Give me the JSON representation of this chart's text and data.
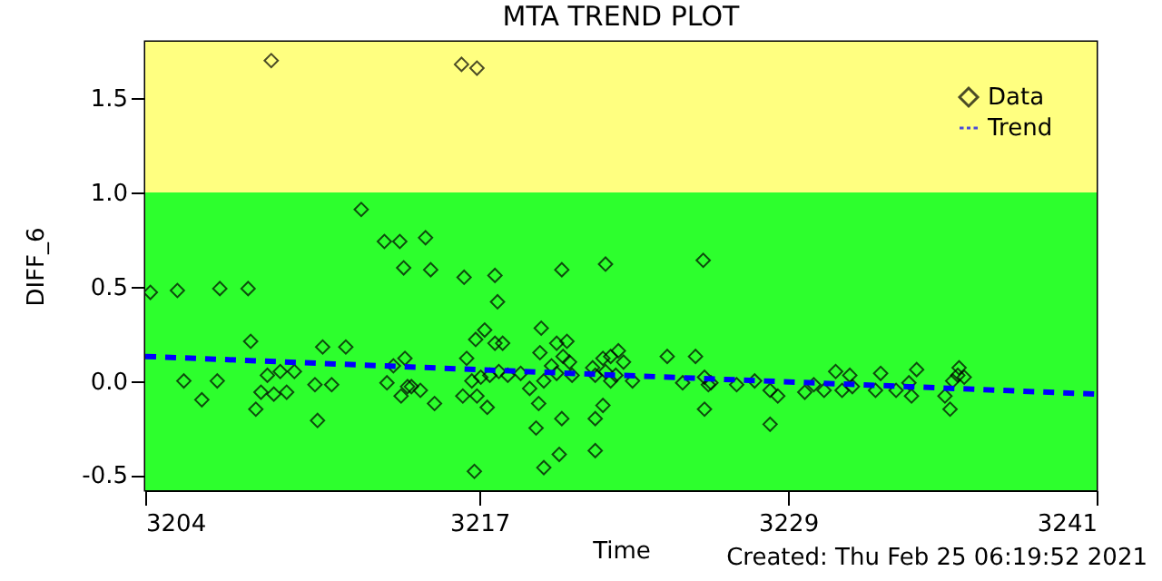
{
  "chart_data": {
    "type": "scatter",
    "title": "MTA TREND PLOT",
    "xlabel": "Time",
    "ylabel": "DIFF_6",
    "annotations": [
      "Created: Thu Feb 25 06:19:52 2021"
    ],
    "xlim": [
      3204,
      3241
    ],
    "ylim": [
      -0.58,
      1.8
    ],
    "xticks": [
      3204,
      3217,
      3229,
      3241
    ],
    "yticks": [
      -0.5,
      {
        "value": 0,
        "label": "0.0"
      },
      0.5,
      {
        "value": 1,
        "label": "1.0"
      },
      1.5
    ],
    "grid": false,
    "legend": "top right",
    "bands": [
      {
        "axis": "y",
        "from": 1.0,
        "to": 1.8,
        "color": "#ffff80"
      },
      {
        "axis": "y",
        "from": -0.58,
        "to": 1.0,
        "color": "#2dff2d"
      }
    ],
    "series": [
      {
        "name": "Data",
        "type": "scatter",
        "color": "#000000",
        "marker": "diamond",
        "x": [
          3204.2,
          3205.25,
          3205.5,
          3206.2,
          3206.9,
          3206.8,
          3208.0,
          3208.1,
          3208.3,
          3208.5,
          3208.75,
          3209.0,
          3209.25,
          3209.5,
          3209.8,
          3210.6,
          3210.7,
          3210.9,
          3211.25,
          3211.8,
          3212.4,
          3213.3,
          3213.9,
          3214.05,
          3214.9,
          3215.1,
          3213.4,
          3213.65,
          3214.1,
          3213.95,
          3214.2,
          3214.35,
          3214.7,
          3215.25,
          3208.9,
          3216.3,
          3216.9,
          3216.4,
          3217.6,
          3217.7,
          3220.2,
          3221.9,
          3225.7,
          3216.8,
          3219.5,
          3220.1,
          3221.5,
          3219.2,
          3220.2,
          3221.5,
          3221.8,
          3216.35,
          3216.85,
          3217.2,
          3217.6,
          3217.9,
          3216.5,
          3216.7,
          3217.05,
          3217.4,
          3217.75,
          3217.3,
          3216.9,
          3218.1,
          3218.6,
          3219.4,
          3220.0,
          3220.4,
          3219.35,
          3218.95,
          3219.3,
          3219.5,
          3220.0,
          3220.6,
          3220.25,
          3220.5,
          3219.8,
          3221.4,
          3221.8,
          3222.1,
          3222.4,
          3221.9,
          3221.5,
          3222.3,
          3222.6,
          3222.1,
          3222.95,
          3224.3,
          3225.4,
          3224.9,
          3225.75,
          3225.75,
          3225.9,
          3226.0,
          3227.0,
          3227.7,
          3228.3,
          3228.3,
          3228.6,
          3229.65,
          3230.0,
          3230.4,
          3230.85,
          3231.1,
          3231.4,
          3231.5,
          3232.4,
          3232.6,
          3233.2,
          3233.7,
          3233.8,
          3234.0,
          3235.1,
          3235.3,
          3235.4,
          3235.65,
          3235.85,
          3235.6
        ],
        "values": [
          0.47,
          0.48,
          0.0,
          -0.1,
          0.49,
          0.0,
          0.49,
          0.21,
          -0.15,
          -0.06,
          0.03,
          -0.07,
          0.05,
          -0.06,
          0.05,
          -0.02,
          -0.21,
          0.18,
          -0.02,
          0.18,
          0.91,
          0.74,
          0.74,
          0.6,
          0.76,
          0.59,
          -0.01,
          0.08,
          0.12,
          -0.08,
          -0.03,
          -0.03,
          -0.05,
          -0.12,
          1.7,
          1.68,
          1.66,
          0.55,
          0.56,
          0.42,
          0.59,
          0.62,
          0.64,
          -0.48,
          -0.46,
          -0.39,
          -0.37,
          -0.25,
          -0.2,
          -0.2,
          -0.13,
          -0.08,
          0.22,
          0.27,
          0.2,
          0.2,
          0.12,
          0.0,
          0.02,
          0.03,
          0.05,
          -0.14,
          -0.08,
          0.03,
          0.04,
          0.28,
          0.2,
          0.21,
          0.15,
          -0.04,
          -0.12,
          0.0,
          0.04,
          0.03,
          0.13,
          0.1,
          0.08,
          0.07,
          0.12,
          0.13,
          0.16,
          0.05,
          0.03,
          0.03,
          0.1,
          0.0,
          0.0,
          0.13,
          0.13,
          -0.01,
          -0.15,
          0.02,
          -0.02,
          -0.01,
          -0.02,
          0.0,
          -0.23,
          -0.05,
          -0.08,
          -0.06,
          -0.02,
          -0.05,
          0.05,
          -0.05,
          0.03,
          -0.03,
          -0.05,
          0.04,
          -0.05,
          -0.01,
          -0.08,
          0.06,
          -0.08,
          -0.15,
          0.0,
          0.07,
          0.02,
          0.03
        ]
      },
      {
        "name": "Trend",
        "type": "line",
        "color": "#0000ff",
        "line_style": "dashed",
        "x": [
          3204,
          3241
        ],
        "values": [
          0.13,
          -0.07
        ]
      }
    ]
  }
}
